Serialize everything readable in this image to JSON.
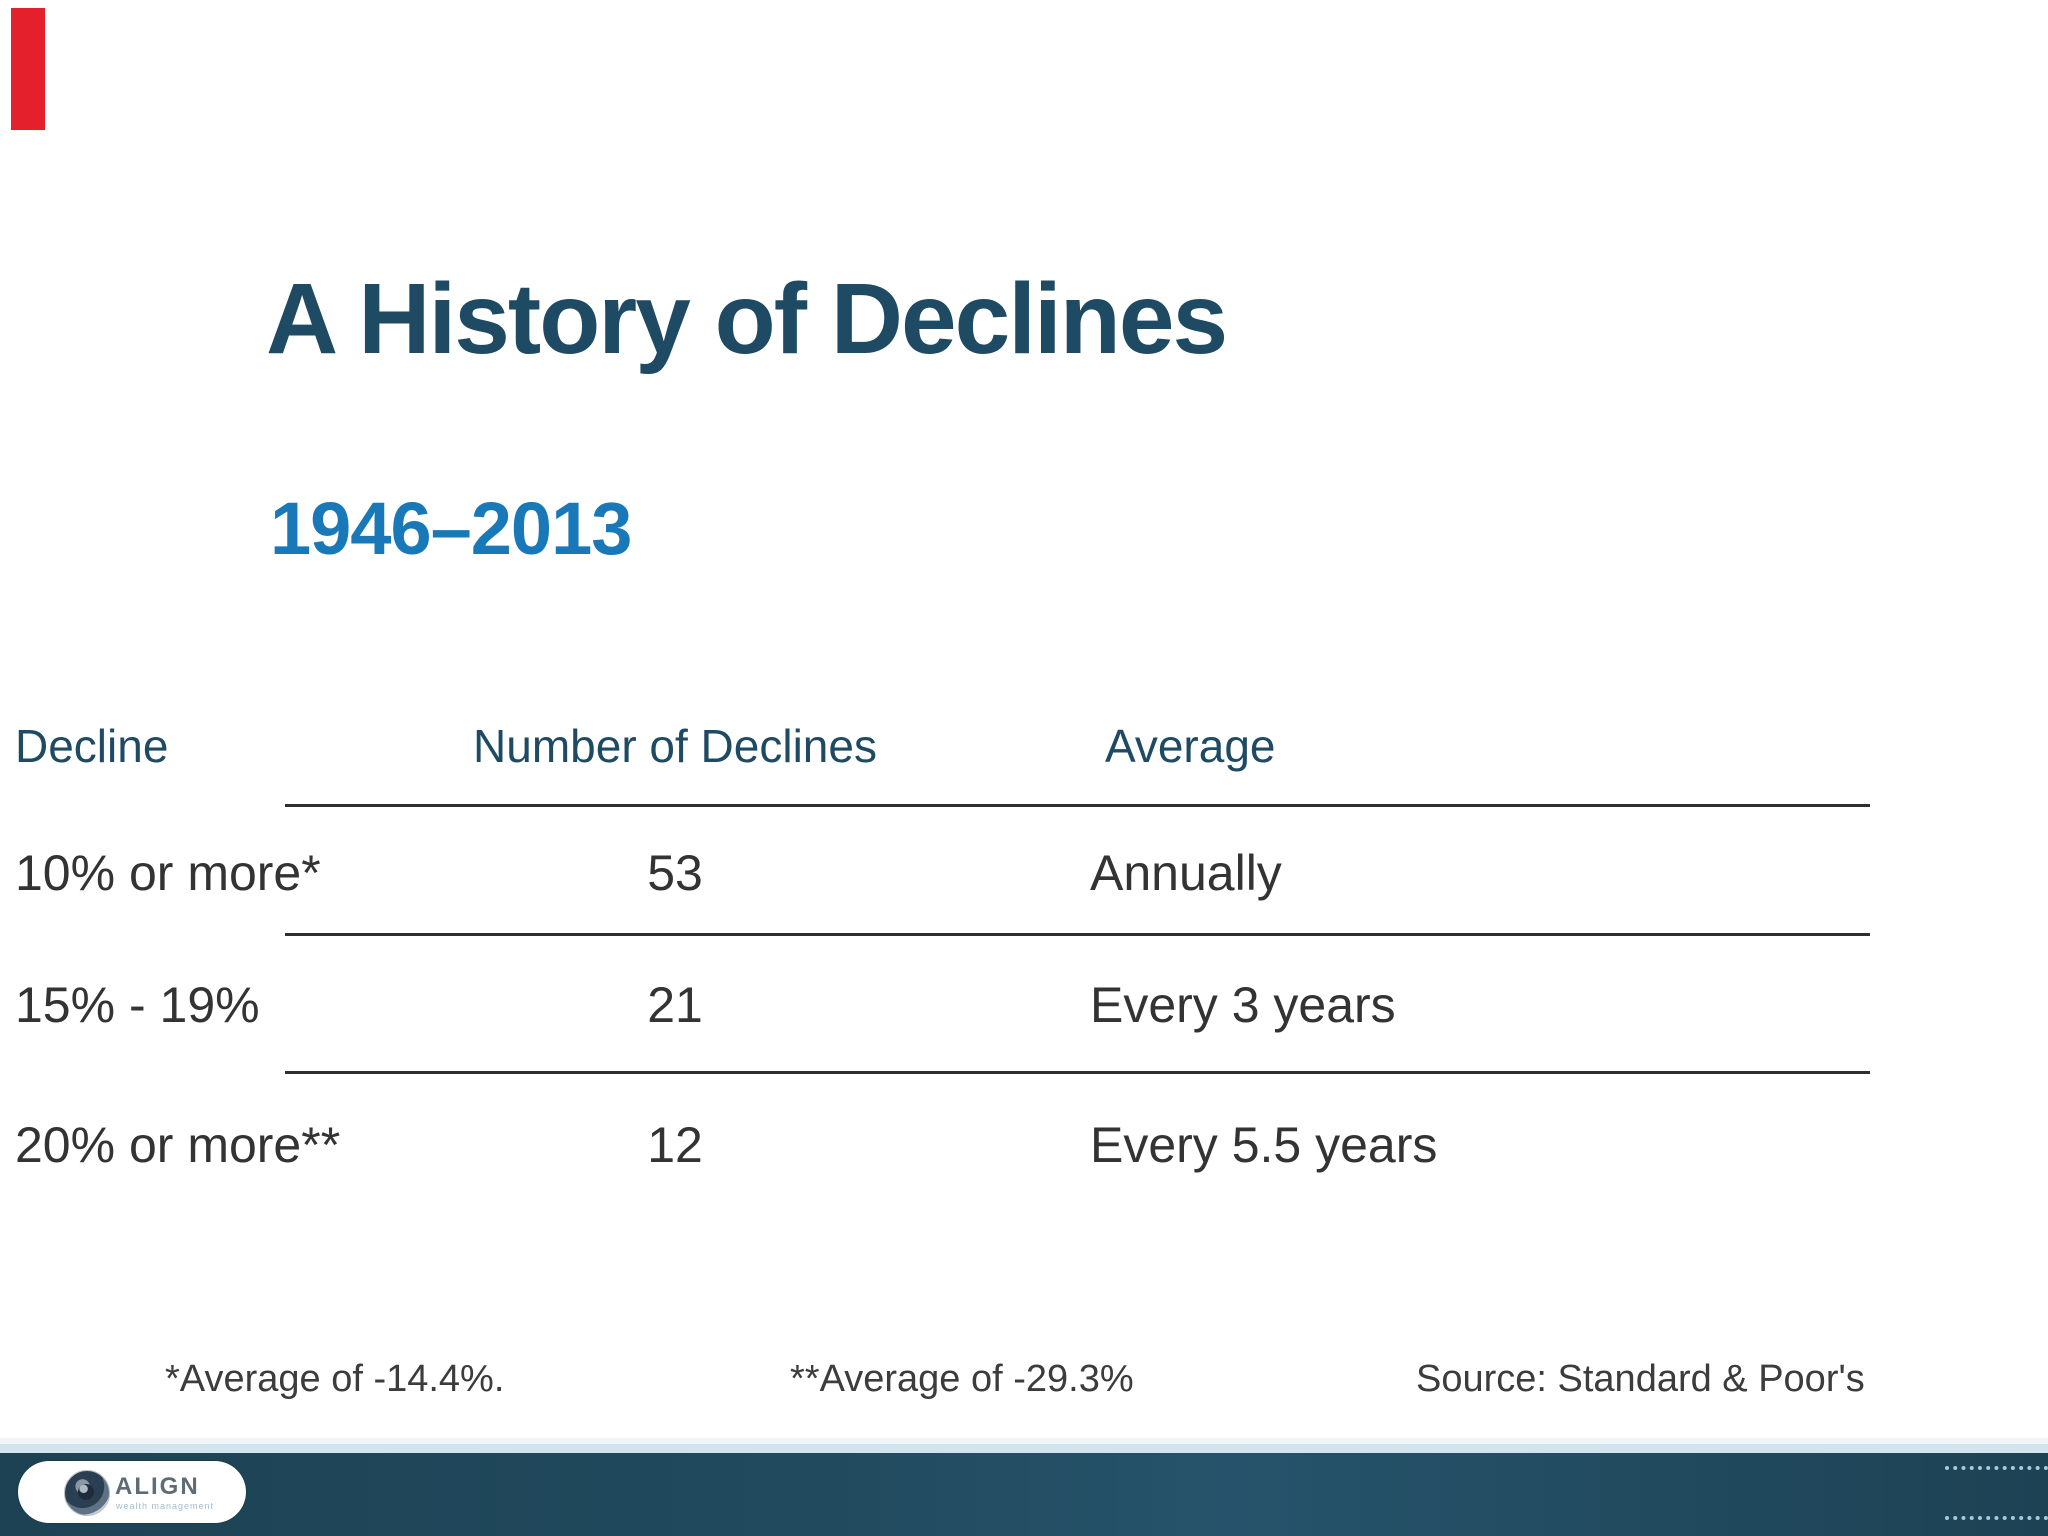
{
  "slide": {
    "title": "A History of Declines",
    "subtitle": "1946–2013"
  },
  "table": {
    "headers": [
      "Decline",
      "Number of Declines",
      "Average"
    ],
    "rows": [
      {
        "decline": "10% or more*",
        "count": "53",
        "average": "Annually"
      },
      {
        "decline": "15% - 19%",
        "count": "21",
        "average": "Every 3 years"
      },
      {
        "decline": "20% or more**",
        "count": "12",
        "average": "Every 5.5 years"
      }
    ]
  },
  "footnotes": {
    "note1": "*Average of -14.4%.",
    "note2": "**Average of -29.3%",
    "source": "Source: Standard & Poor's"
  },
  "footer": {
    "logo_text": "ALIGN",
    "logo_tagline": "wealth management"
  },
  "colors": {
    "accent_red": "#E4202C",
    "title_blue": "#1F4A63",
    "subtitle_blue": "#1878B8",
    "table_text": "#333333",
    "footer_teal": "#20465A",
    "footer_light_line": "#D2E4ED",
    "dotted_line": "#A9C9D9",
    "logo_gray": "#5F6B76"
  }
}
